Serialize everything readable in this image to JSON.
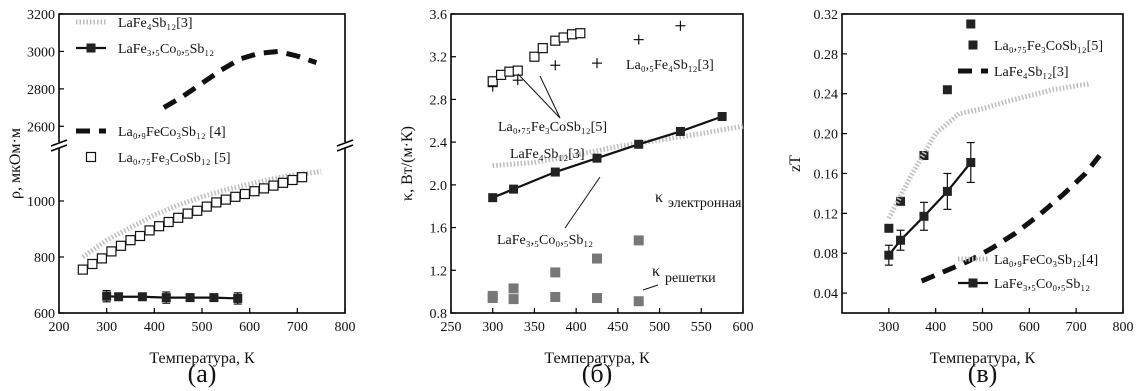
{
  "chart_data": [
    {
      "type": "line",
      "panel_label": "(a)",
      "xlabel": "Температура, К",
      "ylabel": "ρ, мкОм·м",
      "xlim": [
        200,
        800
      ],
      "ylim_lower": [
        600,
        1200
      ],
      "ylim_upper": [
        2500,
        3200
      ],
      "axis_break": true,
      "x_ticks": [
        "200",
        "300",
        "400",
        "500",
        "600",
        "700",
        "800"
      ],
      "y_ticks_lower": [
        "600",
        "800",
        "1000"
      ],
      "y_ticks_upper": [
        "2600",
        "2800",
        "3000",
        "3200"
      ],
      "legend": [
        {
          "text": "LaFe₄Sb₁₂[3]",
          "style": "dotted-gray"
        },
        {
          "text": "LaFe₃,₅Co₀,₅Sb₁₂",
          "style": "solid-square"
        },
        {
          "text": "La₀,₉FeCo₃Sb₁₂ [4]",
          "style": "dashed-black"
        },
        {
          "text": "La₀,₇₅Fe₃CoSb₁₂ [5]",
          "style": "open-square"
        }
      ],
      "series": [
        {
          "name": "LaFe₄Sb₁₂[3]",
          "style": "dotted-gray",
          "x": [
            250,
            300,
            350,
            400,
            450,
            500,
            550,
            600,
            650,
            700,
            750
          ],
          "y": [
            800,
            860,
            905,
            950,
            985,
            1015,
            1040,
            1060,
            1080,
            1095,
            1105
          ]
        },
        {
          "name": "LaFe₃,₅Co₀,₅Sb₁₂",
          "style": "solid-square",
          "x": [
            300,
            325,
            375,
            425,
            475,
            525,
            575
          ],
          "y": [
            660,
            658,
            658,
            655,
            655,
            655,
            652
          ],
          "err": [
            20,
            10,
            10,
            20,
            10,
            10,
            20
          ]
        },
        {
          "name": "La₀,₉FeCo₃Sb₁₂ [4]",
          "style": "dashed-black",
          "x": [
            420,
            460,
            500,
            540,
            580,
            620,
            660,
            700,
            740
          ],
          "y": [
            2700,
            2760,
            2830,
            2900,
            2960,
            2990,
            3000,
            2975,
            2940
          ]
        },
        {
          "name": "La₀,₇₅Fe₃CoSb₁₂ [5]",
          "style": "open-square",
          "x": [
            250,
            270,
            290,
            310,
            330,
            350,
            370,
            390,
            410,
            430,
            450,
            470,
            490,
            510,
            530,
            550,
            570,
            590,
            610,
            630,
            650,
            670,
            690,
            710
          ],
          "y": [
            755,
            775,
            795,
            820,
            840,
            860,
            875,
            895,
            910,
            925,
            940,
            955,
            965,
            980,
            995,
            1005,
            1015,
            1025,
            1035,
            1045,
            1055,
            1065,
            1075,
            1085
          ]
        }
      ]
    },
    {
      "type": "line",
      "panel_label": "(б)",
      "xlabel": "Температура, К",
      "ylabel": "κ, Вт/(м·К)",
      "xlim": [
        250,
        600
      ],
      "ylim": [
        0.8,
        3.6
      ],
      "x_ticks": [
        "250",
        "300",
        "350",
        "400",
        "450",
        "500",
        "550",
        "600"
      ],
      "y_ticks": [
        "0.8",
        "1.2",
        "1.6",
        "2.0",
        "2.4",
        "2.8",
        "3.2",
        "3.6"
      ],
      "annotations": [
        {
          "text": "La₀,₅Fe₄Sb₁₂[3]",
          "for": "plus"
        },
        {
          "text": "La₀,₇₅Fe₃CoSb₁₂[5]",
          "for": "open-square"
        },
        {
          "text": "LaFe₄Sb₁₂[3]",
          "for": "dotted-gray"
        },
        {
          "text": "LaFe₃,₅Co₀,₅Sb₁₂",
          "for": "solid-square"
        },
        {
          "text": "κ",
          "sub": "электронная",
          "for": "gray-squares-upper"
        },
        {
          "text": "κ",
          "sub": "решетки",
          "for": "gray-squares-lower"
        }
      ],
      "series": [
        {
          "name": "La₀,₅Fe₄Sb₁₂[3]",
          "style": "plus",
          "x": [
            300,
            330,
            375,
            425,
            475,
            525
          ],
          "y": [
            2.92,
            2.98,
            3.12,
            3.14,
            3.36,
            3.49
          ]
        },
        {
          "name": "La₀,₇₅Fe₃CoSb₁₂[5]",
          "style": "open-square",
          "x": [
            300,
            310,
            320,
            330,
            350,
            360,
            375,
            385,
            395,
            405
          ],
          "y": [
            2.97,
            3.03,
            3.06,
            3.07,
            3.2,
            3.28,
            3.35,
            3.38,
            3.41,
            3.42
          ]
        },
        {
          "name": "LaFe₄Sb₁₂[3]",
          "style": "dotted-gray",
          "x": [
            300,
            350,
            400,
            450,
            500,
            550,
            600
          ],
          "y": [
            2.18,
            2.21,
            2.28,
            2.36,
            2.42,
            2.48,
            2.55
          ]
        },
        {
          "name": "LaFe₃,₅Co₀,₅Sb₁₂",
          "style": "solid-square",
          "x": [
            300,
            325,
            375,
            425,
            475,
            525,
            575
          ],
          "y": [
            1.88,
            1.96,
            2.12,
            2.25,
            2.38,
            2.5,
            2.64
          ]
        },
        {
          "name": "κ электронная",
          "style": "gray-square",
          "x": [
            300,
            325,
            375,
            425,
            475
          ],
          "y": [
            0.96,
            1.03,
            1.18,
            1.31,
            1.48
          ]
        },
        {
          "name": "κ решетки",
          "style": "gray-square",
          "x": [
            300,
            325,
            375,
            425,
            475
          ],
          "y": [
            0.94,
            0.93,
            0.95,
            0.94,
            0.91
          ]
        }
      ]
    },
    {
      "type": "line",
      "panel_label": "(в)",
      "xlabel": "Температура, К",
      "ylabel": "zT",
      "xlim": [
        200,
        800
      ],
      "ylim": [
        0.02,
        0.32
      ],
      "x_ticks": [
        "300",
        "400",
        "500",
        "600",
        "700",
        "800"
      ],
      "y_ticks": [
        "0.04",
        "0.08",
        "0.12",
        "0.16",
        "0.20",
        "0.24",
        "0.28",
        "0.32"
      ],
      "legend": [
        {
          "text": "La₀,₇₅Fe₃CoSb₁₂[5]",
          "style": "solid-square-only"
        },
        {
          "text": "LaFe₄Sb₁₂[3]",
          "style": "dashed-black"
        },
        {
          "text": "La₀,₉FeCo₃Sb₁₂[4]",
          "style": "dotted-gray"
        },
        {
          "text": "LaFe₃,₅Co₀,₅Sb₁₂",
          "style": "solid-square"
        }
      ],
      "series": [
        {
          "name": "La₀,₇₅Fe₃CoSb₁₂[5]",
          "style": "solid-square-only",
          "x": [
            300,
            325,
            375,
            425,
            475
          ],
          "y": [
            0.105,
            0.132,
            0.178,
            0.244,
            0.31
          ]
        },
        {
          "name": "LaFe₄Sb₁₂[3]",
          "style": "dashed-black",
          "x": [
            370,
            420,
            470,
            520,
            570,
            620,
            670,
            720,
            750
          ],
          "y": [
            0.052,
            0.062,
            0.072,
            0.085,
            0.1,
            0.118,
            0.138,
            0.16,
            0.178
          ]
        },
        {
          "name": "La₀,₉FeCo₃Sb₁₂[4]",
          "style": "dotted-gray",
          "x": [
            300,
            350,
            400,
            450,
            500,
            550,
            600,
            650,
            700,
            730
          ],
          "y": [
            0.115,
            0.16,
            0.2,
            0.22,
            0.225,
            0.232,
            0.238,
            0.244,
            0.248,
            0.25
          ]
        },
        {
          "name": "LaFe₃,₅Co₀,₅Sb₁₂",
          "style": "solid-square",
          "x": [
            300,
            325,
            375,
            425,
            475
          ],
          "y": [
            0.078,
            0.093,
            0.117,
            0.142,
            0.171
          ],
          "err": [
            0.01,
            0.01,
            0.014,
            0.018,
            0.02
          ]
        }
      ]
    }
  ]
}
